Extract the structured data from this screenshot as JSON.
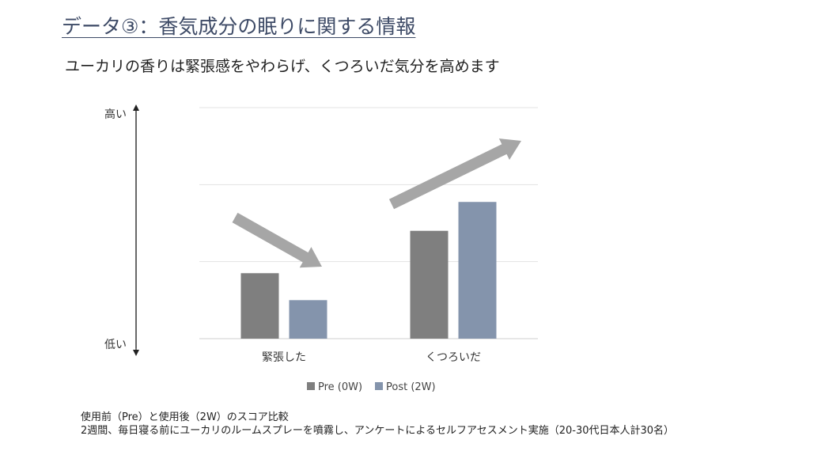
{
  "title": "データ③：香気成分の眠りに関する情報",
  "subtitle": "ユーカリの香りは緊張感をやわらげ、くつろいだ気分を高めます",
  "chart_data": {
    "type": "bar",
    "title": "",
    "xlabel": "",
    "ylabel": "",
    "y_axis_labels": {
      "top": "高い",
      "bottom": "低い"
    },
    "categories": [
      "緊張した",
      "くつろいだ"
    ],
    "series": [
      {
        "name": "Pre (0W)",
        "color": "#7f7f7f",
        "values": [
          1.7,
          2.8
        ]
      },
      {
        "name": "Post (2W)",
        "color": "#8494ac",
        "values": [
          1.0,
          3.55
        ]
      }
    ],
    "ylim": [
      0,
      6
    ],
    "grid": true,
    "legend_position": "bottom-center",
    "annotations": [
      {
        "type": "arrow",
        "direction": "down",
        "category": "緊張した"
      },
      {
        "type": "arrow",
        "direction": "up",
        "category": "くつろいだ"
      }
    ]
  },
  "footnote": {
    "line1": "使用前（Pre）と使用後（2W）のスコア比較",
    "line2": "2週間、毎日寝る前にユーカリのルームスプレーを噴霧し、アンケートによるセルフアセスメント実施（20-30代日本人計30名）"
  }
}
